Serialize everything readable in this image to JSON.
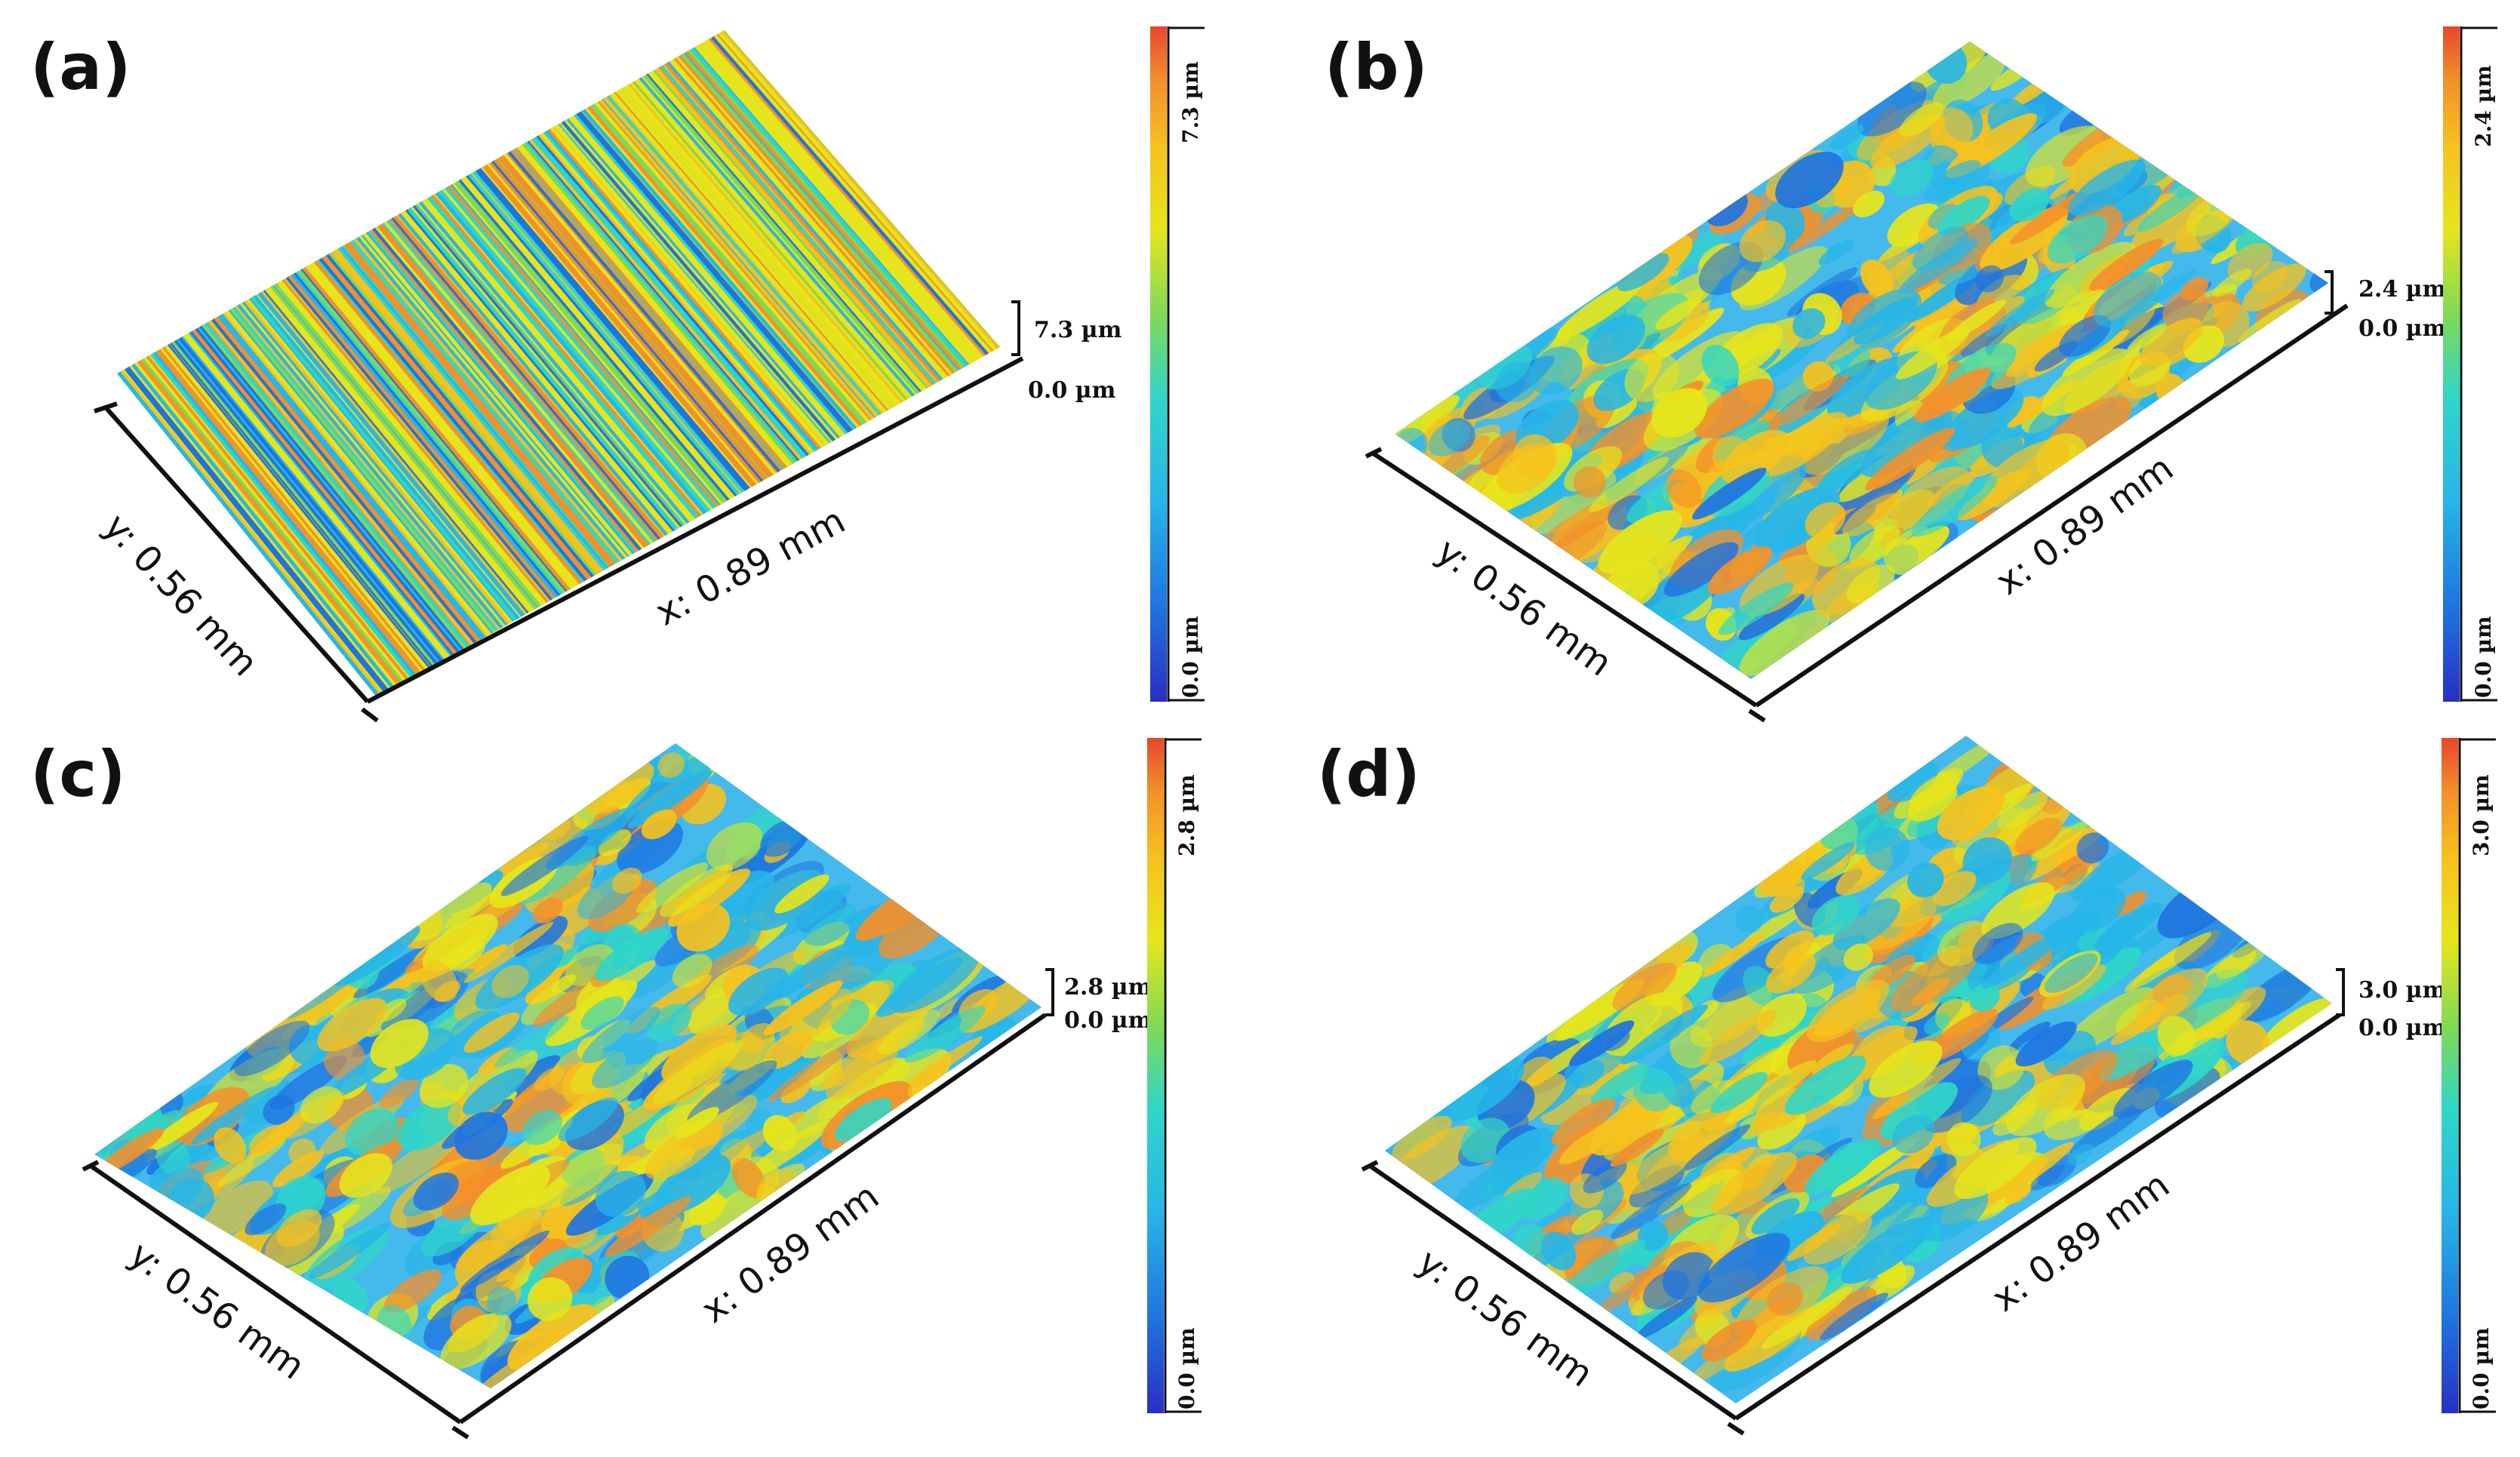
{
  "figure": {
    "colormap": [
      "#2a2fc2",
      "#1f74e0",
      "#27b6e8",
      "#2fd6c8",
      "#7ed957",
      "#e6e51c",
      "#f6c21e",
      "#f4902a",
      "#e8462e"
    ],
    "panels": [
      {
        "label": "(a)",
        "x_label": "x: 0.89 mm",
        "y_label": "y: 0.56 mm",
        "z_max_label": "7.3 µm",
        "z_min_label": "0.0 µm",
        "cb_max_label": "7.3 µm",
        "cb_min_label": "0.0 µm",
        "texture": "grooved"
      },
      {
        "label": "(b)",
        "x_label": "x: 0.89 mm",
        "y_label": "y: 0.56 mm",
        "z_max_label": "2.4 µm",
        "z_min_label": "0.0 µm",
        "cb_max_label": "2.4 µm",
        "cb_min_label": "0.0 µm",
        "texture": "patchy"
      },
      {
        "label": "(c)",
        "x_label": "x: 0.89 mm",
        "y_label": "y: 0.56 mm",
        "z_max_label": "2.8 µm",
        "z_min_label": "0.0 µm",
        "cb_max_label": "2.8 µm",
        "cb_min_label": "0.0 µm",
        "texture": "patchy"
      },
      {
        "label": "(d)",
        "x_label": "x: 0.89 mm",
        "y_label": "y: 0.56 mm",
        "z_max_label": "3.0 µm",
        "z_min_label": "0.0 µm",
        "cb_max_label": "3.0 µm",
        "cb_min_label": "0.0 µm",
        "texture": "patchy"
      }
    ]
  }
}
